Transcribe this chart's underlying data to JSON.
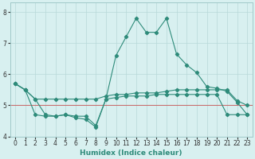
{
  "xlabel": "Humidex (Indice chaleur)",
  "x": [
    0,
    1,
    2,
    3,
    4,
    5,
    6,
    7,
    8,
    9,
    10,
    11,
    12,
    13,
    14,
    15,
    16,
    17,
    18,
    19,
    20,
    21,
    22,
    23
  ],
  "curve_main": [
    5.7,
    5.5,
    5.2,
    4.7,
    4.65,
    4.7,
    4.6,
    4.55,
    4.3,
    5.2,
    6.6,
    7.2,
    7.8,
    7.35,
    7.35,
    7.8,
    6.65,
    6.3,
    6.05,
    5.6,
    5.55,
    5.45,
    5.1,
    4.7
  ],
  "line_mid": [
    5.7,
    5.5,
    5.2,
    5.2,
    5.2,
    5.2,
    5.2,
    5.2,
    5.2,
    5.3,
    5.35,
    5.35,
    5.4,
    5.4,
    5.4,
    5.45,
    5.5,
    5.5,
    5.5,
    5.5,
    5.5,
    5.5,
    5.15,
    5.0
  ],
  "line_low": [
    5.7,
    5.5,
    4.7,
    4.65,
    4.65,
    4.7,
    4.65,
    4.65,
    4.35,
    5.2,
    5.25,
    5.3,
    5.3,
    5.3,
    5.35,
    5.35,
    5.35,
    5.35,
    5.35,
    5.35,
    5.35,
    4.7,
    4.7,
    4.7
  ],
  "line_color": "#2e8b7a",
  "bg_color": "#d8f0f0",
  "grid_color": "#b8d8d8",
  "red_line_y": 5.0,
  "ylim": [
    4.0,
    8.3
  ],
  "xlim": [
    -0.5,
    23.5
  ],
  "yticks": [
    4,
    5,
    6,
    7,
    8
  ],
  "xticks": [
    0,
    1,
    2,
    3,
    4,
    5,
    6,
    7,
    8,
    9,
    10,
    11,
    12,
    13,
    14,
    15,
    16,
    17,
    18,
    19,
    20,
    21,
    22,
    23
  ]
}
